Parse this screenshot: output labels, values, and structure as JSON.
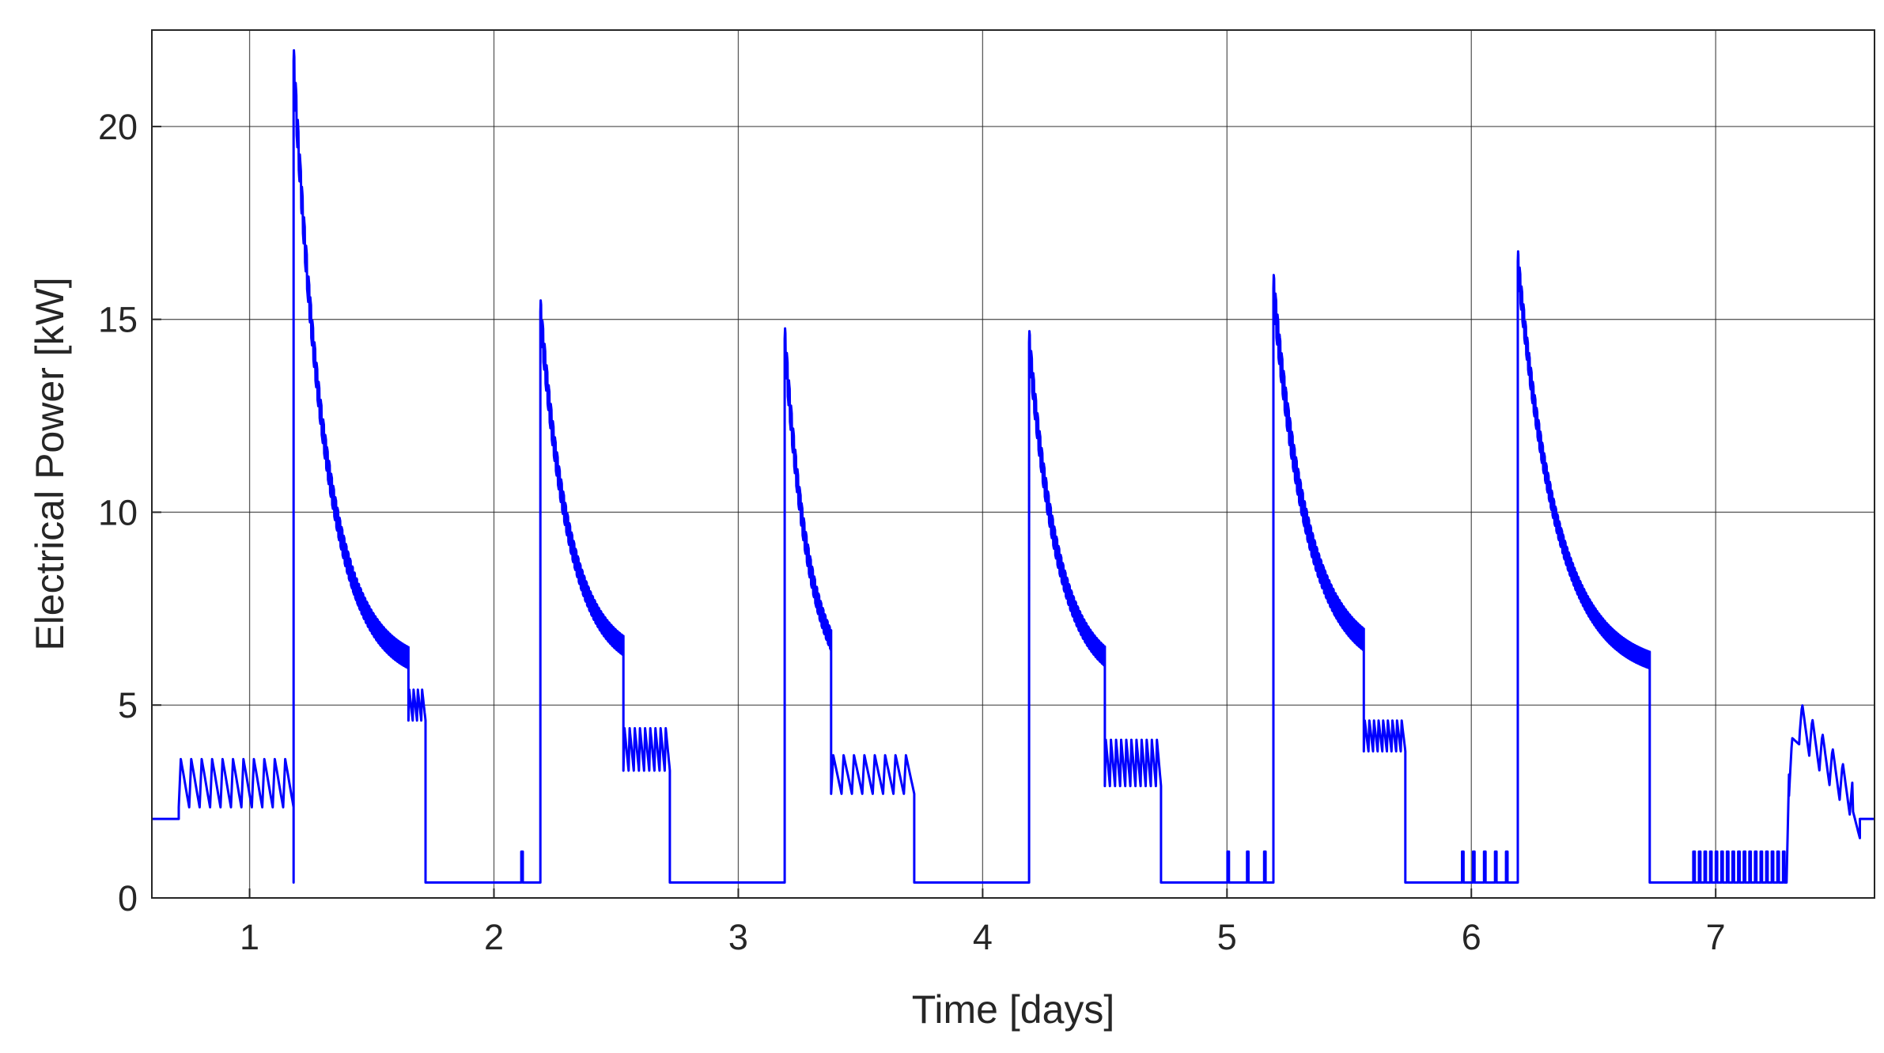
{
  "chart_data": {
    "type": "line",
    "title": "",
    "xlabel": "Time [days]",
    "ylabel": "Electrical Power [kW]",
    "xlim": [
      0.6,
      7.65
    ],
    "ylim": [
      0,
      22.5
    ],
    "xticks": [
      1,
      2,
      3,
      4,
      5,
      6,
      7
    ],
    "yticks": [
      0,
      5,
      10,
      15,
      20
    ],
    "xtick_labels": [
      "1",
      "2",
      "3",
      "4",
      "5",
      "6",
      "7"
    ],
    "ytick_labels": [
      "0",
      "5",
      "10",
      "15",
      "20"
    ],
    "grid": true,
    "legend": "none",
    "colors": {
      "series": "#0000ff",
      "grid": "#262626",
      "axis": "#262626"
    },
    "series": [
      {
        "color": "#0000ff",
        "description": "Power trace reconstructed as a sequence of signal segments (values in days and kW)",
        "start": {
          "x": 0.6,
          "y": 2.05
        },
        "segments": [
          {
            "type": "flat",
            "x0": 0.6,
            "x1": 0.71,
            "y": 2.05
          },
          {
            "type": "osc",
            "x0": 0.71,
            "x1": 1.18,
            "ylow": 2.35,
            "yhigh": 3.6,
            "cycles": 11
          },
          {
            "type": "decay",
            "x0": 1.18,
            "x1": 1.65,
            "ypeak": 21.7,
            "yend": 5.8,
            "tau": 0.13,
            "ripple": 0.45,
            "cycles": 55
          },
          {
            "type": "osc",
            "x0": 1.65,
            "x1": 1.72,
            "ylow": 4.6,
            "yhigh": 5.4,
            "cycles": 4
          },
          {
            "type": "flat",
            "x0": 1.72,
            "x1": 2.11,
            "y": 0.4
          },
          {
            "type": "spike",
            "x": 2.115,
            "y": 1.2
          },
          {
            "type": "flat",
            "x0": 2.12,
            "x1": 2.19,
            "y": 0.4
          },
          {
            "type": "decay",
            "x0": 2.19,
            "x1": 2.53,
            "ypeak": 15.2,
            "yend": 6.0,
            "tau": 0.12,
            "ripple": 0.4,
            "cycles": 40
          },
          {
            "type": "osc",
            "x0": 2.53,
            "x1": 2.72,
            "ylow": 3.3,
            "yhigh": 4.4,
            "cycles": 9
          },
          {
            "type": "flat",
            "x0": 2.72,
            "x1": 3.19,
            "y": 0.4
          },
          {
            "type": "decay",
            "x0": 3.19,
            "x1": 3.38,
            "ypeak": 14.5,
            "yend": 5.3,
            "tau": 0.1,
            "ripple": 0.4,
            "cycles": 22
          },
          {
            "type": "osc",
            "x0": 3.38,
            "x1": 3.72,
            "ylow": 2.7,
            "yhigh": 3.7,
            "cycles": 8
          },
          {
            "type": "flat",
            "x0": 3.72,
            "x1": 4.19,
            "y": 0.4
          },
          {
            "type": "decay",
            "x0": 4.19,
            "x1": 4.5,
            "ypeak": 14.4,
            "yend": 5.6,
            "tau": 0.12,
            "ripple": 0.4,
            "cycles": 36
          },
          {
            "type": "osc",
            "x0": 4.5,
            "x1": 4.73,
            "ylow": 2.9,
            "yhigh": 4.1,
            "cycles": 11
          },
          {
            "type": "flat",
            "x0": 4.73,
            "x1": 5.0,
            "y": 0.4
          },
          {
            "type": "spike",
            "x": 5.005,
            "y": 1.2
          },
          {
            "type": "spike",
            "x": 5.085,
            "y": 1.2
          },
          {
            "type": "spike",
            "x": 5.155,
            "y": 1.2
          },
          {
            "type": "flat",
            "x0": 5.16,
            "x1": 5.19,
            "y": 0.4
          },
          {
            "type": "decay",
            "x0": 5.19,
            "x1": 5.56,
            "ypeak": 15.8,
            "yend": 6.0,
            "tau": 0.14,
            "ripple": 0.45,
            "cycles": 44
          },
          {
            "type": "osc",
            "x0": 5.56,
            "x1": 5.73,
            "ylow": 3.8,
            "yhigh": 4.6,
            "cycles": 9
          },
          {
            "type": "flat",
            "x0": 5.73,
            "x1": 5.96,
            "y": 0.4
          },
          {
            "type": "spike",
            "x": 5.965,
            "y": 1.2
          },
          {
            "type": "spike",
            "x": 6.01,
            "y": 1.2
          },
          {
            "type": "spike",
            "x": 6.055,
            "y": 1.2
          },
          {
            "type": "spike",
            "x": 6.1,
            "y": 1.2
          },
          {
            "type": "spike",
            "x": 6.145,
            "y": 1.2
          },
          {
            "type": "flat",
            "x0": 6.15,
            "x1": 6.19,
            "y": 0.4
          },
          {
            "type": "decay",
            "x0": 6.19,
            "x1": 6.73,
            "ypeak": 16.5,
            "yend": 5.8,
            "tau": 0.16,
            "ripple": 0.35,
            "cycles": 70
          },
          {
            "type": "flat",
            "x0": 6.73,
            "x1": 6.89,
            "y": 0.4
          },
          {
            "type": "pulses",
            "x0": 6.9,
            "x1": 7.29,
            "y": 1.2,
            "count": 17
          },
          {
            "type": "bump",
            "x0": 7.29,
            "x1": 7.59,
            "ypeak": 4.6,
            "yend": 2.1,
            "ripple": 0.55,
            "cycles": 7
          },
          {
            "type": "flat",
            "x0": 7.59,
            "x1": 7.65,
            "y": 2.05
          }
        ]
      }
    ]
  }
}
